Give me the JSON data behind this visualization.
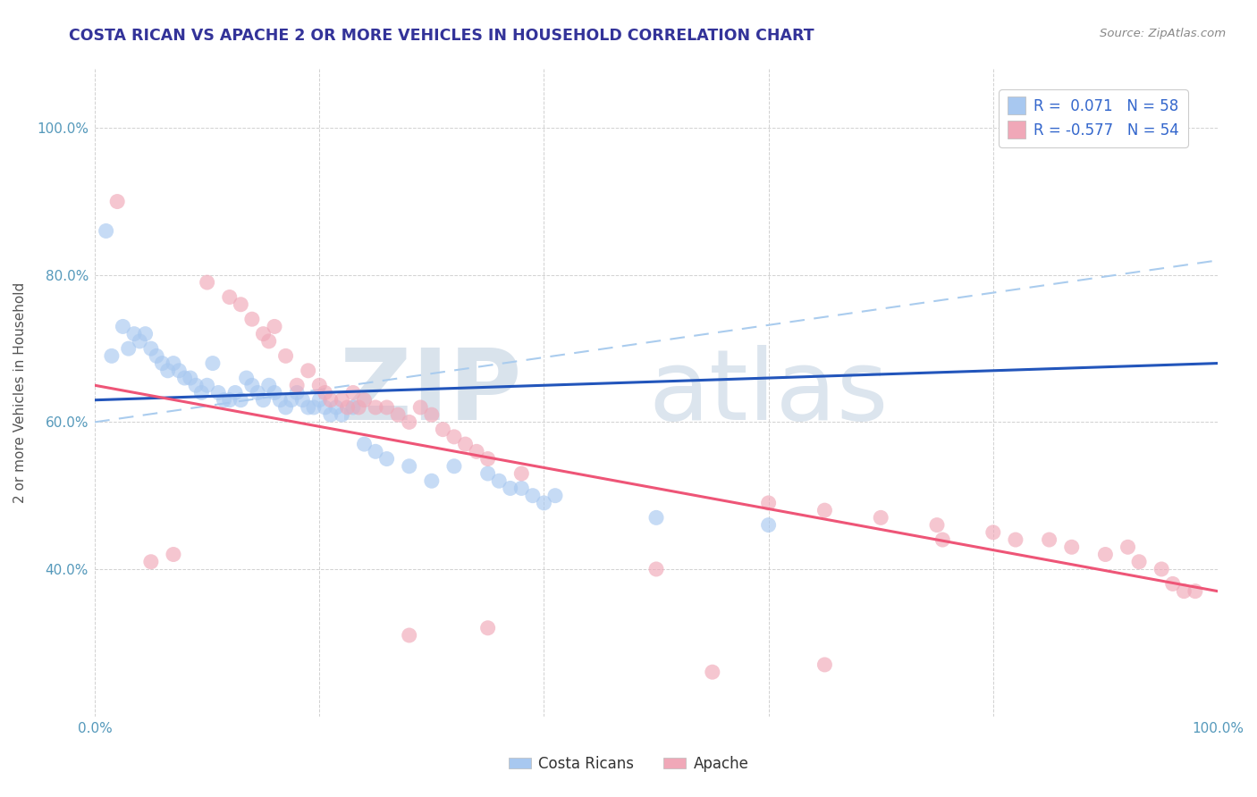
{
  "title": "COSTA RICAN VS APACHE 2 OR MORE VEHICLES IN HOUSEHOLD CORRELATION CHART",
  "source": "Source: ZipAtlas.com",
  "ylabel": "2 or more Vehicles in Household",
  "legend_label1": "Costa Ricans",
  "legend_label2": "Apache",
  "r1": 0.071,
  "n1": 58,
  "r2": -0.577,
  "n2": 54,
  "blue_color": "#A8C8F0",
  "pink_color": "#F0A8B8",
  "line_blue": "#2255BB",
  "line_pink": "#EE5577",
  "dashed_line_color": "#AACCEE",
  "xlim": [
    0,
    100
  ],
  "ylim": [
    20,
    108
  ],
  "yticks": [
    40,
    60,
    80,
    100
  ],
  "ytick_labels": [
    "40.0%",
    "60.0%",
    "80.0%",
    "100.0%"
  ],
  "blue_line_x": [
    0,
    100
  ],
  "blue_line_y": [
    63.0,
    68.0
  ],
  "pink_line_x": [
    0,
    100
  ],
  "pink_line_y": [
    65.0,
    37.0
  ],
  "dashed_line_x": [
    0,
    100
  ],
  "dashed_line_y": [
    60.0,
    82.0
  ],
  "blue_scatter": [
    [
      1.0,
      86.0
    ],
    [
      1.5,
      69.0
    ],
    [
      2.5,
      73.0
    ],
    [
      3.0,
      70.0
    ],
    [
      3.5,
      72.0
    ],
    [
      4.0,
      71.0
    ],
    [
      4.5,
      72.0
    ],
    [
      5.0,
      70.0
    ],
    [
      5.5,
      69.0
    ],
    [
      6.0,
      68.0
    ],
    [
      6.5,
      67.0
    ],
    [
      7.0,
      68.0
    ],
    [
      7.5,
      67.0
    ],
    [
      8.0,
      66.0
    ],
    [
      8.5,
      66.0
    ],
    [
      9.0,
      65.0
    ],
    [
      9.5,
      64.0
    ],
    [
      10.0,
      65.0
    ],
    [
      10.5,
      68.0
    ],
    [
      11.0,
      64.0
    ],
    [
      11.5,
      63.0
    ],
    [
      12.0,
      63.0
    ],
    [
      12.5,
      64.0
    ],
    [
      13.0,
      63.0
    ],
    [
      13.5,
      66.0
    ],
    [
      14.0,
      65.0
    ],
    [
      14.5,
      64.0
    ],
    [
      15.0,
      63.0
    ],
    [
      15.5,
      65.0
    ],
    [
      16.0,
      64.0
    ],
    [
      16.5,
      63.0
    ],
    [
      17.0,
      62.0
    ],
    [
      17.5,
      63.0
    ],
    [
      18.0,
      64.0
    ],
    [
      18.5,
      63.0
    ],
    [
      19.0,
      62.0
    ],
    [
      19.5,
      62.0
    ],
    [
      20.0,
      63.0
    ],
    [
      20.5,
      62.0
    ],
    [
      21.0,
      61.0
    ],
    [
      21.5,
      62.0
    ],
    [
      22.0,
      61.0
    ],
    [
      23.0,
      62.0
    ],
    [
      24.0,
      57.0
    ],
    [
      25.0,
      56.0
    ],
    [
      26.0,
      55.0
    ],
    [
      28.0,
      54.0
    ],
    [
      30.0,
      52.0
    ],
    [
      32.0,
      54.0
    ],
    [
      35.0,
      53.0
    ],
    [
      36.0,
      52.0
    ],
    [
      37.0,
      51.0
    ],
    [
      38.0,
      51.0
    ],
    [
      39.0,
      50.0
    ],
    [
      40.0,
      49.0
    ],
    [
      41.0,
      50.0
    ],
    [
      50.0,
      47.0
    ],
    [
      60.0,
      46.0
    ]
  ],
  "pink_scatter": [
    [
      2.0,
      90.0
    ],
    [
      10.0,
      79.0
    ],
    [
      12.0,
      77.0
    ],
    [
      13.0,
      76.0
    ],
    [
      14.0,
      74.0
    ],
    [
      15.0,
      72.0
    ],
    [
      15.5,
      71.0
    ],
    [
      16.0,
      73.0
    ],
    [
      17.0,
      69.0
    ],
    [
      18.0,
      65.0
    ],
    [
      19.0,
      67.0
    ],
    [
      20.0,
      65.0
    ],
    [
      20.5,
      64.0
    ],
    [
      21.0,
      63.0
    ],
    [
      22.0,
      63.0
    ],
    [
      22.5,
      62.0
    ],
    [
      23.0,
      64.0
    ],
    [
      23.5,
      62.0
    ],
    [
      24.0,
      63.0
    ],
    [
      25.0,
      62.0
    ],
    [
      26.0,
      62.0
    ],
    [
      27.0,
      61.0
    ],
    [
      28.0,
      60.0
    ],
    [
      29.0,
      62.0
    ],
    [
      30.0,
      61.0
    ],
    [
      31.0,
      59.0
    ],
    [
      32.0,
      58.0
    ],
    [
      33.0,
      57.0
    ],
    [
      34.0,
      56.0
    ],
    [
      5.0,
      41.0
    ],
    [
      7.0,
      42.0
    ],
    [
      35.0,
      55.0
    ],
    [
      38.0,
      53.0
    ],
    [
      50.0,
      40.0
    ],
    [
      60.0,
      49.0
    ],
    [
      65.0,
      48.0
    ],
    [
      70.0,
      47.0
    ],
    [
      75.0,
      46.0
    ],
    [
      75.5,
      44.0
    ],
    [
      80.0,
      45.0
    ],
    [
      82.0,
      44.0
    ],
    [
      85.0,
      44.0
    ],
    [
      87.0,
      43.0
    ],
    [
      90.0,
      42.0
    ],
    [
      92.0,
      43.0
    ],
    [
      93.0,
      41.0
    ],
    [
      95.0,
      40.0
    ],
    [
      96.0,
      38.0
    ],
    [
      97.0,
      37.0
    ],
    [
      98.0,
      37.0
    ],
    [
      28.0,
      31.0
    ],
    [
      35.0,
      32.0
    ],
    [
      55.0,
      26.0
    ],
    [
      65.0,
      27.0
    ]
  ]
}
